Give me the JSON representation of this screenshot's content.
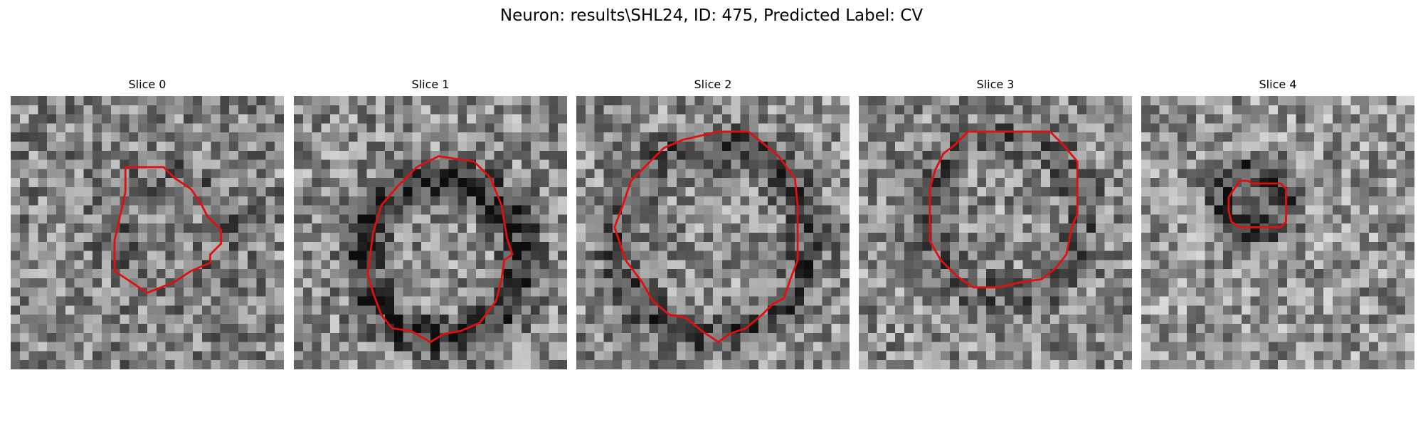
{
  "figure": {
    "title": "Neuron: results\\SHL24, ID: 475, Predicted Label: CV"
  },
  "colors": {
    "contour": "#e01010",
    "background": "#ffffff"
  },
  "panels": [
    {
      "title": "Slice 0",
      "seed": 11,
      "mean": 0.52,
      "dark_ring_strength": 0.1,
      "contour": [
        [
          0.42,
          0.26
        ],
        [
          0.56,
          0.26
        ],
        [
          0.6,
          0.3
        ],
        [
          0.66,
          0.34
        ],
        [
          0.7,
          0.4
        ],
        [
          0.72,
          0.44
        ],
        [
          0.77,
          0.49
        ],
        [
          0.77,
          0.54
        ],
        [
          0.73,
          0.58
        ],
        [
          0.73,
          0.61
        ],
        [
          0.66,
          0.64
        ],
        [
          0.6,
          0.68
        ],
        [
          0.5,
          0.72
        ],
        [
          0.38,
          0.64
        ],
        [
          0.38,
          0.53
        ],
        [
          0.4,
          0.44
        ],
        [
          0.42,
          0.35
        ]
      ]
    },
    {
      "title": "Slice 1",
      "seed": 23,
      "mean": 0.55,
      "dark_ring_strength": 0.35,
      "contour": [
        [
          0.53,
          0.22
        ],
        [
          0.66,
          0.24
        ],
        [
          0.72,
          0.3
        ],
        [
          0.76,
          0.4
        ],
        [
          0.78,
          0.52
        ],
        [
          0.8,
          0.58
        ],
        [
          0.77,
          0.6
        ],
        [
          0.76,
          0.67
        ],
        [
          0.74,
          0.75
        ],
        [
          0.68,
          0.83
        ],
        [
          0.61,
          0.86
        ],
        [
          0.55,
          0.87
        ],
        [
          0.5,
          0.9
        ],
        [
          0.43,
          0.86
        ],
        [
          0.36,
          0.85
        ],
        [
          0.32,
          0.8
        ],
        [
          0.29,
          0.72
        ],
        [
          0.27,
          0.65
        ],
        [
          0.29,
          0.5
        ],
        [
          0.32,
          0.4
        ],
        [
          0.38,
          0.33
        ],
        [
          0.45,
          0.26
        ]
      ]
    },
    {
      "title": "Slice 2",
      "seed": 37,
      "mean": 0.55,
      "dark_ring_strength": 0.25,
      "contour": [
        [
          0.39,
          0.16
        ],
        [
          0.52,
          0.13
        ],
        [
          0.63,
          0.13
        ],
        [
          0.68,
          0.17
        ],
        [
          0.74,
          0.22
        ],
        [
          0.8,
          0.3
        ],
        [
          0.81,
          0.4
        ],
        [
          0.81,
          0.6
        ],
        [
          0.78,
          0.68
        ],
        [
          0.76,
          0.74
        ],
        [
          0.72,
          0.76
        ],
        [
          0.68,
          0.8
        ],
        [
          0.62,
          0.85
        ],
        [
          0.56,
          0.87
        ],
        [
          0.52,
          0.9
        ],
        [
          0.46,
          0.86
        ],
        [
          0.4,
          0.81
        ],
        [
          0.34,
          0.8
        ],
        [
          0.28,
          0.75
        ],
        [
          0.24,
          0.68
        ],
        [
          0.18,
          0.6
        ],
        [
          0.14,
          0.48
        ],
        [
          0.17,
          0.4
        ],
        [
          0.2,
          0.31
        ],
        [
          0.26,
          0.25
        ],
        [
          0.32,
          0.19
        ]
      ]
    },
    {
      "title": "Slice 3",
      "seed": 53,
      "mean": 0.55,
      "dark_ring_strength": 0.18,
      "contour": [
        [
          0.4,
          0.13
        ],
        [
          0.7,
          0.13
        ],
        [
          0.75,
          0.18
        ],
        [
          0.8,
          0.24
        ],
        [
          0.8,
          0.43
        ],
        [
          0.78,
          0.48
        ],
        [
          0.76,
          0.58
        ],
        [
          0.72,
          0.63
        ],
        [
          0.67,
          0.67
        ],
        [
          0.6,
          0.68
        ],
        [
          0.51,
          0.7
        ],
        [
          0.42,
          0.7
        ],
        [
          0.36,
          0.66
        ],
        [
          0.3,
          0.6
        ],
        [
          0.26,
          0.53
        ],
        [
          0.26,
          0.34
        ],
        [
          0.28,
          0.27
        ],
        [
          0.31,
          0.21
        ],
        [
          0.35,
          0.18
        ]
      ]
    },
    {
      "title": "Slice 4",
      "seed": 71,
      "mean": 0.58,
      "dark_ring_strength": 0.3,
      "contour": [
        [
          0.36,
          0.31
        ],
        [
          0.39,
          0.31
        ],
        [
          0.41,
          0.32
        ],
        [
          0.51,
          0.32
        ],
        [
          0.53,
          0.34
        ],
        [
          0.53,
          0.46
        ],
        [
          0.51,
          0.48
        ],
        [
          0.36,
          0.48
        ],
        [
          0.33,
          0.46
        ],
        [
          0.32,
          0.42
        ],
        [
          0.32,
          0.37
        ],
        [
          0.34,
          0.34
        ]
      ]
    }
  ]
}
